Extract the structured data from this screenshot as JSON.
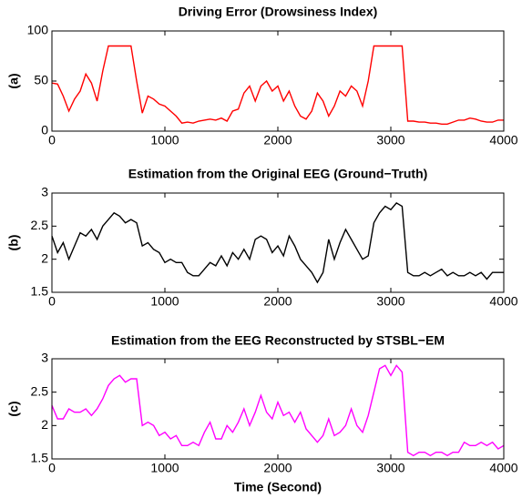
{
  "chart_data": [
    {
      "type": "line",
      "title": "Driving Error (Drowsiness Index)",
      "ylabel": "(a)",
      "x": [
        0,
        50,
        100,
        150,
        200,
        250,
        300,
        350,
        400,
        450,
        500,
        550,
        600,
        650,
        700,
        750,
        800,
        850,
        900,
        950,
        1000,
        1050,
        1100,
        1150,
        1200,
        1250,
        1300,
        1350,
        1400,
        1450,
        1500,
        1550,
        1600,
        1650,
        1700,
        1750,
        1800,
        1850,
        1900,
        1950,
        2000,
        2050,
        2100,
        2150,
        2200,
        2250,
        2300,
        2350,
        2400,
        2450,
        2500,
        2550,
        2600,
        2650,
        2700,
        2750,
        2800,
        2850,
        2900,
        2950,
        3000,
        3050,
        3100,
        3150,
        3200,
        3250,
        3300,
        3350,
        3400,
        3450,
        3500,
        3550,
        3600,
        3650,
        3700,
        3750,
        3800,
        3850,
        3900,
        3950,
        4000
      ],
      "values": [
        48,
        47,
        35,
        20,
        32,
        40,
        57,
        48,
        30,
        60,
        85,
        85,
        85,
        85,
        85,
        50,
        18,
        35,
        32,
        27,
        25,
        20,
        15,
        8,
        9,
        8,
        10,
        11,
        12,
        11,
        13,
        10,
        20,
        22,
        38,
        45,
        30,
        45,
        50,
        40,
        45,
        30,
        40,
        25,
        15,
        12,
        20,
        38,
        30,
        15,
        25,
        40,
        35,
        45,
        40,
        25,
        50,
        85,
        85,
        85,
        85,
        85,
        85,
        10,
        10,
        9,
        9,
        8,
        8,
        7,
        7,
        9,
        11,
        11,
        13,
        12,
        10,
        9,
        9,
        11,
        11
      ],
      "color": "#ff0000",
      "xlim": [
        0,
        4000
      ],
      "xticks": [
        0,
        1000,
        2000,
        3000,
        4000
      ],
      "ylim": [
        0,
        100
      ],
      "yticks": [
        0,
        50,
        100
      ]
    },
    {
      "type": "line",
      "title": "Estimation from the Original EEG (Ground−Truth)",
      "ylabel": "(b)",
      "x": [
        0,
        50,
        100,
        150,
        200,
        250,
        300,
        350,
        400,
        450,
        500,
        550,
        600,
        650,
        700,
        750,
        800,
        850,
        900,
        950,
        1000,
        1050,
        1100,
        1150,
        1200,
        1250,
        1300,
        1350,
        1400,
        1450,
        1500,
        1550,
        1600,
        1650,
        1700,
        1750,
        1800,
        1850,
        1900,
        1950,
        2000,
        2050,
        2100,
        2150,
        2200,
        2250,
        2300,
        2350,
        2400,
        2450,
        2500,
        2550,
        2600,
        2650,
        2700,
        2750,
        2800,
        2850,
        2900,
        2950,
        3000,
        3050,
        3100,
        3150,
        3200,
        3250,
        3300,
        3350,
        3400,
        3450,
        3500,
        3550,
        3600,
        3650,
        3700,
        3750,
        3800,
        3850,
        3900,
        3950,
        4000
      ],
      "values": [
        2.35,
        2.1,
        2.25,
        2.0,
        2.2,
        2.4,
        2.35,
        2.45,
        2.3,
        2.5,
        2.6,
        2.7,
        2.65,
        2.55,
        2.6,
        2.55,
        2.2,
        2.25,
        2.15,
        2.1,
        1.95,
        2.0,
        1.95,
        1.95,
        1.8,
        1.75,
        1.75,
        1.85,
        1.95,
        1.9,
        2.05,
        1.9,
        2.1,
        2.0,
        2.15,
        2.0,
        2.3,
        2.35,
        2.3,
        2.1,
        2.2,
        2.05,
        2.35,
        2.2,
        2.0,
        1.9,
        1.8,
        1.65,
        1.8,
        2.3,
        2.0,
        2.25,
        2.45,
        2.3,
        2.15,
        2.0,
        2.05,
        2.55,
        2.7,
        2.8,
        2.75,
        2.85,
        2.8,
        1.8,
        1.75,
        1.75,
        1.8,
        1.75,
        1.8,
        1.85,
        1.75,
        1.8,
        1.75,
        1.75,
        1.8,
        1.75,
        1.8,
        1.7,
        1.8,
        1.8,
        1.8
      ],
      "color": "#000000",
      "xlim": [
        0,
        4000
      ],
      "xticks": [
        0,
        1000,
        2000,
        3000,
        4000
      ],
      "ylim": [
        1.5,
        3
      ],
      "yticks": [
        1.5,
        2,
        2.5,
        3
      ]
    },
    {
      "type": "line",
      "title": "Estimation from the EEG Reconstructed by STSBL−EM",
      "ylabel": "(c)",
      "xlabel": "Time (Second)",
      "x": [
        0,
        50,
        100,
        150,
        200,
        250,
        300,
        350,
        400,
        450,
        500,
        550,
        600,
        650,
        700,
        750,
        800,
        850,
        900,
        950,
        1000,
        1050,
        1100,
        1150,
        1200,
        1250,
        1300,
        1350,
        1400,
        1450,
        1500,
        1550,
        1600,
        1650,
        1700,
        1750,
        1800,
        1850,
        1900,
        1950,
        2000,
        2050,
        2100,
        2150,
        2200,
        2250,
        2300,
        2350,
        2400,
        2450,
        2500,
        2550,
        2600,
        2650,
        2700,
        2750,
        2800,
        2850,
        2900,
        2950,
        3000,
        3050,
        3100,
        3150,
        3200,
        3250,
        3300,
        3350,
        3400,
        3450,
        3500,
        3550,
        3600,
        3650,
        3700,
        3750,
        3800,
        3850,
        3900,
        3950,
        4000
      ],
      "values": [
        2.3,
        2.1,
        2.1,
        2.25,
        2.2,
        2.2,
        2.25,
        2.15,
        2.25,
        2.4,
        2.6,
        2.7,
        2.75,
        2.65,
        2.7,
        2.7,
        2.0,
        2.05,
        2.0,
        1.85,
        1.9,
        1.8,
        1.85,
        1.7,
        1.7,
        1.75,
        1.7,
        1.9,
        2.05,
        1.8,
        1.8,
        2.0,
        1.9,
        2.05,
        2.25,
        2.0,
        2.2,
        2.45,
        2.2,
        2.1,
        2.35,
        2.15,
        2.2,
        2.05,
        2.2,
        1.95,
        1.85,
        1.75,
        1.85,
        2.1,
        1.85,
        1.9,
        2.0,
        2.25,
        2.0,
        1.9,
        2.15,
        2.5,
        2.85,
        2.9,
        2.75,
        2.9,
        2.8,
        1.6,
        1.55,
        1.6,
        1.6,
        1.55,
        1.6,
        1.6,
        1.55,
        1.6,
        1.6,
        1.75,
        1.7,
        1.7,
        1.75,
        1.7,
        1.75,
        1.65,
        1.7
      ],
      "color": "#ff00ff",
      "xlim": [
        0,
        4000
      ],
      "xticks": [
        0,
        1000,
        2000,
        3000,
        4000
      ],
      "ylim": [
        1.5,
        3
      ],
      "yticks": [
        1.5,
        2,
        2.5,
        3
      ]
    }
  ]
}
